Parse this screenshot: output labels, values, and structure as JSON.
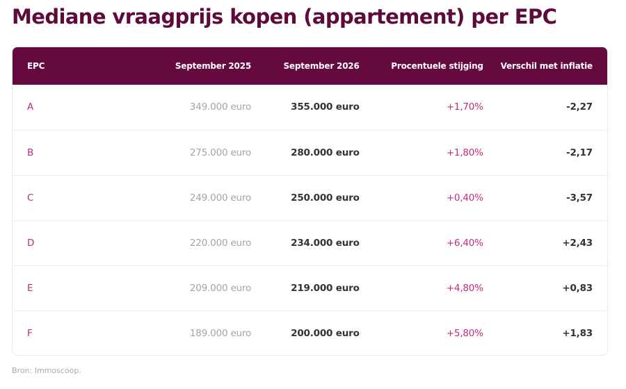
{
  "title": "Mediane vraagprijs kopen (appartement) per EPC",
  "source": "Bron: Immoscoop.",
  "colors": {
    "title": "#5f0a3c",
    "header_background": "#650a3f",
    "accent_pink": "#c42a79",
    "muted_grey": "#a3a3a3"
  },
  "chart_data": {
    "type": "table",
    "title": "Mediane vraagprijs kopen (appartement) per EPC",
    "columns": [
      "EPC",
      "September 2025",
      "September 2026",
      "Procentuele stijging",
      "Verschil met inflatie"
    ],
    "rows": [
      [
        "A",
        "349.000 euro",
        "355.000 euro",
        "+1,70%",
        "-2,27"
      ],
      [
        "B",
        "275.000 euro",
        "280.000 euro",
        "+1,80%",
        "-2,17"
      ],
      [
        "C",
        "249.000 euro",
        "250.000 euro",
        "+0,40%",
        "-3,57"
      ],
      [
        "D",
        "220.000 euro",
        "234.000 euro",
        "+6,40%",
        "+2,43"
      ],
      [
        "E",
        "209.000 euro",
        "219.000 euro",
        "+4,80%",
        "+0,83"
      ],
      [
        "F",
        "189.000 euro",
        "200.000 euro",
        "+5,80%",
        "+1,83"
      ]
    ]
  }
}
